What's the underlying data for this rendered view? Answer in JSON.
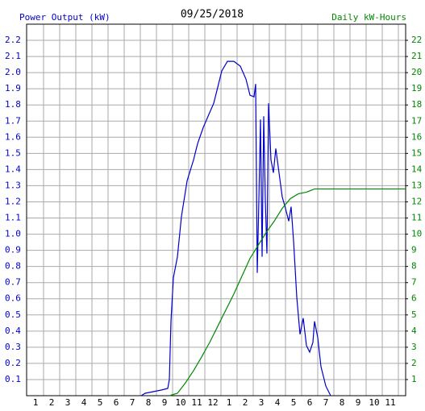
{
  "chart_data": {
    "type": "line",
    "title": "09/25/2018",
    "y_label": "Power Output (kW)",
    "y2_label": "Daily kW-Hours",
    "xlim": [
      0.45,
      23.95
    ],
    "xticks": [
      1,
      2,
      3,
      4,
      5,
      6,
      7,
      8,
      9,
      10,
      11,
      12,
      {
        "value": 13,
        "label": "1"
      },
      {
        "value": 14,
        "label": "2"
      },
      {
        "value": 15,
        "label": "3"
      },
      {
        "value": 16,
        "label": "4"
      },
      {
        "value": 17,
        "label": "5"
      },
      {
        "value": 18,
        "label": "6"
      },
      {
        "value": 19,
        "label": "7"
      },
      {
        "value": 20,
        "label": "8"
      },
      {
        "value": 21,
        "label": "9"
      },
      {
        "value": 22,
        "label": "10"
      },
      {
        "value": 23,
        "label": "11"
      }
    ],
    "ylim": [
      0,
      2.3
    ],
    "yticks": [
      0.1,
      0.2,
      0.3,
      0.4,
      0.5,
      0.6,
      0.7,
      0.8,
      0.9,
      {
        "value": 1.0,
        "label": "1.0"
      },
      1.1,
      1.2,
      1.3,
      1.4,
      1.5,
      1.6,
      1.7,
      1.8,
      1.9,
      {
        "value": 2.0,
        "label": "2.0"
      },
      2.1,
      2.2
    ],
    "y2lim": [
      0,
      23
    ],
    "y2ticks": [
      1,
      2,
      3,
      4,
      5,
      6,
      7,
      8,
      9,
      10,
      11,
      12,
      13,
      14,
      15,
      16,
      17,
      18,
      19,
      20,
      21,
      22
    ],
    "grid": true,
    "series": [
      {
        "name": "Power Output (kW)",
        "color": "#0000cc",
        "x": [
          7.55,
          7.8,
          8.3,
          8.8,
          9.2,
          9.3,
          9.4,
          9.55,
          9.8,
          10.05,
          10.4,
          10.8,
          11.05,
          11.4,
          11.7,
          12.05,
          12.3,
          12.55,
          12.9,
          13.3,
          13.7,
          14.05,
          14.3,
          14.55,
          14.65,
          14.75,
          14.85,
          14.95,
          15.05,
          15.15,
          15.25,
          15.35,
          15.45,
          15.6,
          15.75,
          15.9,
          16.1,
          16.3,
          16.5,
          16.7,
          16.85,
          17.0,
          17.2,
          17.4,
          17.6,
          17.8,
          18.0,
          18.2,
          18.3,
          18.5,
          18.7,
          19.0,
          19.3
        ],
        "values": [
          0,
          0.015,
          0.025,
          0.035,
          0.045,
          0.1,
          0.46,
          0.73,
          0.86,
          1.11,
          1.33,
          1.46,
          1.56,
          1.66,
          1.73,
          1.81,
          1.91,
          2.01,
          2.07,
          2.07,
          2.04,
          1.96,
          1.86,
          1.85,
          1.93,
          0.76,
          1.21,
          1.71,
          0.86,
          1.73,
          1.21,
          0.88,
          1.81,
          1.46,
          1.38,
          1.53,
          1.38,
          1.23,
          1.16,
          1.08,
          1.17,
          0.96,
          0.61,
          0.38,
          0.48,
          0.31,
          0.27,
          0.33,
          0.46,
          0.36,
          0.18,
          0.06,
          0
        ]
      },
      {
        "name": "Daily kW-Hours",
        "color": "#008800",
        "axis": "y2",
        "x": [
          9.3,
          9.8,
          10.3,
          10.8,
          11.3,
          11.8,
          12.3,
          12.8,
          13.3,
          13.8,
          14.3,
          14.8,
          15.3,
          15.8,
          16.3,
          16.8,
          17.3,
          17.8,
          18.3,
          18.8,
          23.95
        ],
        "values": [
          0,
          0.15,
          0.8,
          1.55,
          2.4,
          3.3,
          4.3,
          5.3,
          6.3,
          7.4,
          8.5,
          9.3,
          10.1,
          10.8,
          11.6,
          12.2,
          12.5,
          12.6,
          12.8,
          12.8,
          12.8
        ]
      }
    ]
  }
}
